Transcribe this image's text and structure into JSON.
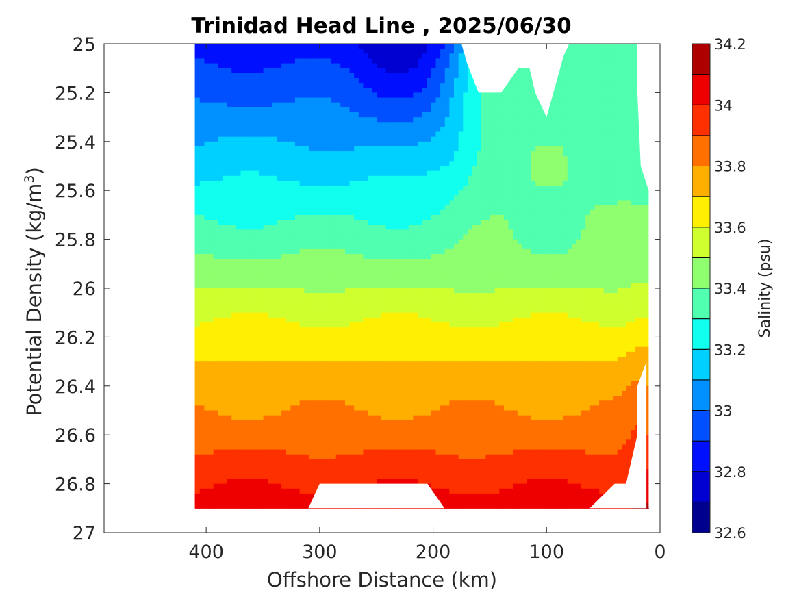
{
  "chart_data": {
    "type": "filled-contour",
    "title": "Trinidad Head Line , 2025/06/30",
    "xlabel": "Offshore Distance (km)",
    "ylabel_main": "Potential Density (kg/m",
    "ylabel_sup": "3",
    "ylabel_close": ")",
    "x_range": [
      490,
      0
    ],
    "x_reversed": true,
    "y_range": [
      25.0,
      27.0
    ],
    "y_reversed": true,
    "x_ticks": [
      "400",
      "300",
      "200",
      "100",
      "0"
    ],
    "x_tick_values": [
      400,
      300,
      200,
      100,
      0
    ],
    "y_ticks": [
      "25",
      "25.2",
      "25.4",
      "25.6",
      "25.8",
      "26",
      "26.2",
      "26.4",
      "26.6",
      "26.8",
      "27"
    ],
    "y_tick_values": [
      25.0,
      25.2,
      25.4,
      25.6,
      25.8,
      26.0,
      26.2,
      26.4,
      26.6,
      26.8,
      27.0
    ],
    "colorbar": {
      "label": "Salinity (psu)",
      "range": [
        32.6,
        34.2
      ],
      "ticks": [
        "32.6",
        "32.8",
        "33",
        "33.2",
        "33.4",
        "33.6",
        "33.8",
        "34",
        "34.2"
      ],
      "tick_values": [
        32.6,
        32.8,
        33.0,
        33.2,
        33.4,
        33.6,
        33.8,
        34.0,
        34.2
      ],
      "levels": [
        32.6,
        32.7,
        32.8,
        32.9,
        33.0,
        33.1,
        33.2,
        33.3,
        33.4,
        33.5,
        33.6,
        33.7,
        33.8,
        33.9,
        34.0,
        34.1,
        34.2
      ],
      "colormap": [
        "#00008f",
        "#0000d0",
        "#0010ff",
        "#0050ff",
        "#0090ff",
        "#00d0ff",
        "#10ffef",
        "#50ffaf",
        "#90ff6f",
        "#d0ff2f",
        "#ffef00",
        "#ffaf00",
        "#ff7000",
        "#ff3000",
        "#ef0000",
        "#af0000"
      ]
    },
    "data_extent": {
      "x_min_km": 10,
      "x_max_km": 410,
      "sigma_min": 25.0,
      "sigma_max": 26.9
    },
    "salinity_bands_offshore_410km": [
      {
        "sigma": 25.0,
        "salinity": 32.85
      },
      {
        "sigma": 25.25,
        "salinity": 32.95
      },
      {
        "sigma": 25.4,
        "salinity": 33.05
      },
      {
        "sigma": 25.55,
        "salinity": 33.15
      },
      {
        "sigma": 25.7,
        "salinity": 33.25
      },
      {
        "sigma": 25.85,
        "salinity": 33.35
      },
      {
        "sigma": 25.97,
        "salinity": 33.45
      },
      {
        "sigma": 26.1,
        "salinity": 33.55
      },
      {
        "sigma": 26.2,
        "salinity": 33.65
      },
      {
        "sigma": 26.38,
        "salinity": 33.75
      },
      {
        "sigma": 26.57,
        "salinity": 33.85
      },
      {
        "sigma": 26.8,
        "salinity": 33.95
      },
      {
        "sigma": 26.9,
        "salinity": 34.05
      }
    ]
  }
}
